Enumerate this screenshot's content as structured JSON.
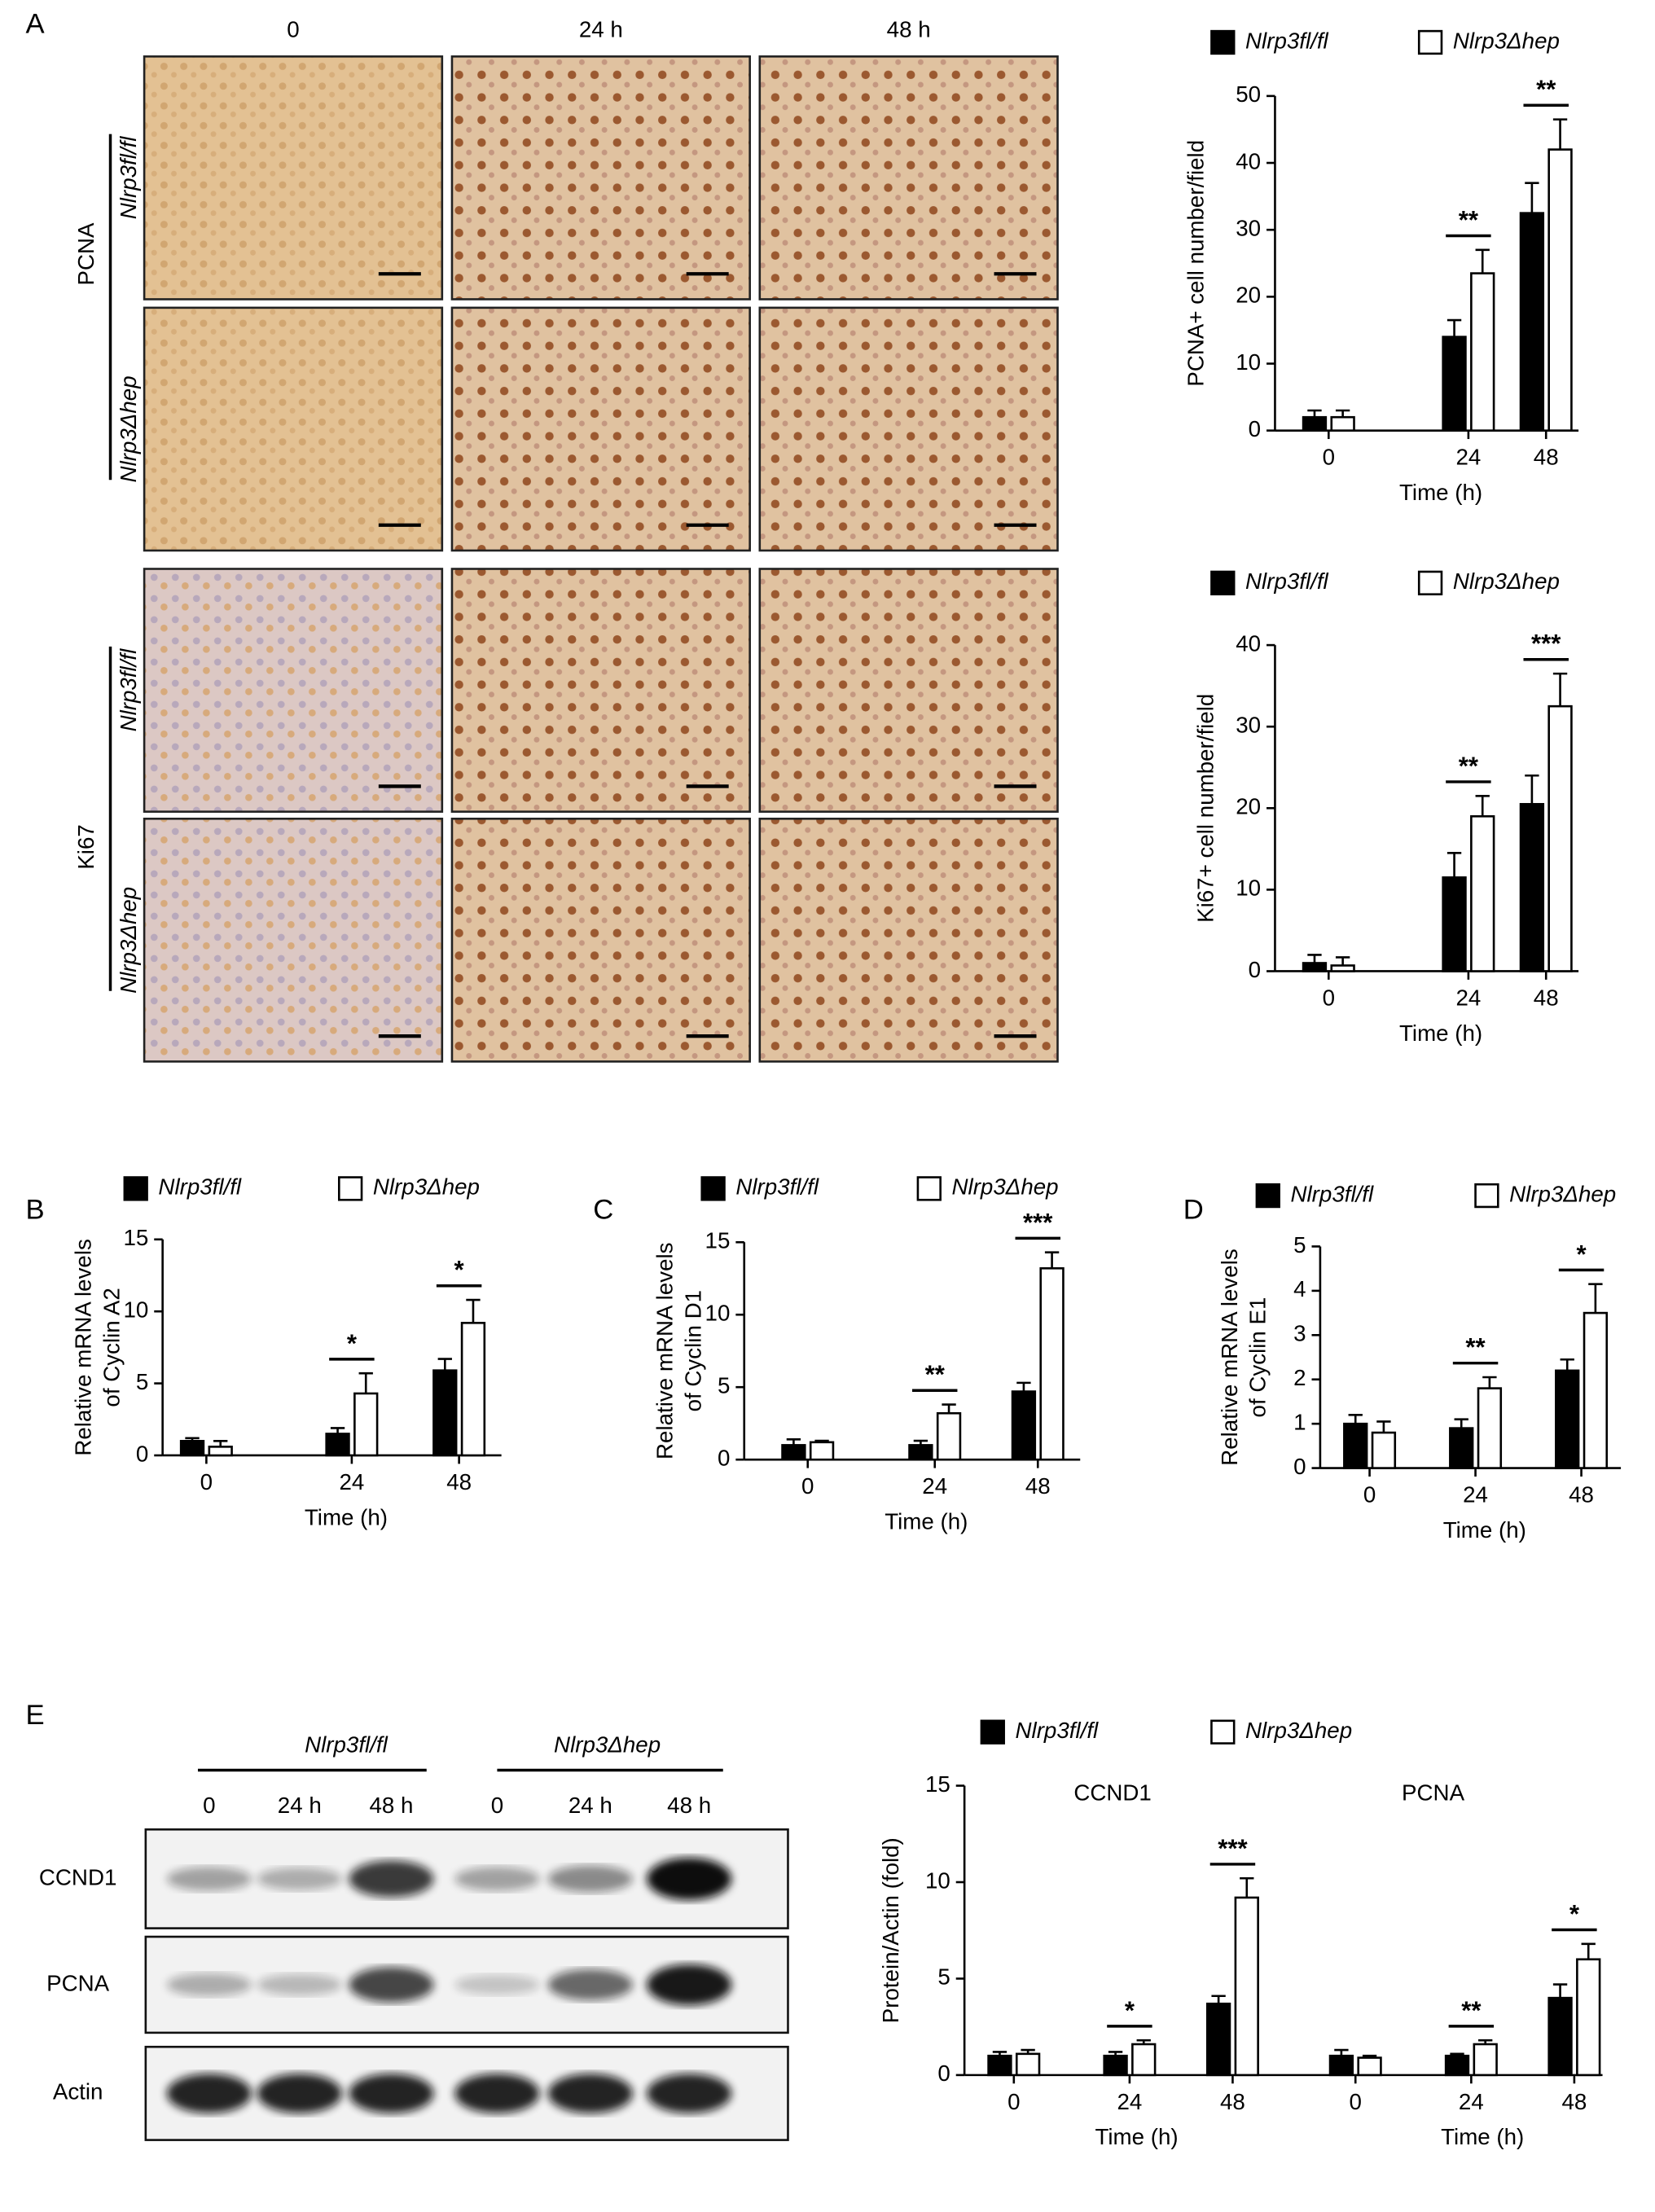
{
  "panel_labels": [
    "A",
    "B",
    "C",
    "D",
    "E"
  ],
  "micrographs": {
    "columns": [
      "0",
      "24 h",
      "48 h"
    ],
    "stains": [
      {
        "name": "PCNA",
        "rows": [
          "Nlrp3fl/fl",
          "Nlrp3Δhep"
        ]
      },
      {
        "name": "Ki67",
        "rows": [
          "Nlrp3fl/fl",
          "Nlrp3Δhep"
        ]
      }
    ]
  },
  "blot": {
    "groups": [
      {
        "name": "Nlrp3fl/fl",
        "lanes": [
          "0",
          "24 h",
          "48 h"
        ]
      },
      {
        "name": "Nlrp3Δhep",
        "lanes": [
          "0",
          "24 h",
          "48 h"
        ]
      }
    ],
    "rows": [
      "CCND1",
      "PCNA",
      "Actin"
    ]
  },
  "chart_data": [
    {
      "type": "bar",
      "ylabel": [
        "PCNA+ cell number/field"
      ],
      "xlabel": "Time (h)",
      "categories": [
        "0",
        "24",
        "48"
      ],
      "ylim": [
        0,
        50
      ],
      "yticks": [
        0,
        10,
        20,
        30,
        40,
        50
      ],
      "series": [
        {
          "name": "Nlrp3fl/fl",
          "color": "#000000",
          "values": [
            2,
            14,
            32.5
          ],
          "errors": [
            1,
            2.5,
            4.5
          ]
        },
        {
          "name": "Nlrp3Δhep",
          "color": "#ffffff",
          "values": [
            2,
            23.5,
            42
          ],
          "errors": [
            1,
            3.5,
            4.5
          ]
        }
      ],
      "significance": [
        null,
        "**",
        "**"
      ]
    },
    {
      "type": "bar",
      "ylabel": [
        "Ki67+ cell number/field"
      ],
      "xlabel": "Time (h)",
      "categories": [
        "0",
        "24",
        "48"
      ],
      "ylim": [
        0,
        40
      ],
      "yticks": [
        0,
        10,
        20,
        30,
        40
      ],
      "series": [
        {
          "name": "Nlrp3fl/fl",
          "color": "#000000",
          "values": [
            1,
            11.5,
            20.5
          ],
          "errors": [
            1,
            3,
            3.5
          ]
        },
        {
          "name": "Nlrp3Δhep",
          "color": "#ffffff",
          "values": [
            0.7,
            19,
            32.5
          ],
          "errors": [
            1,
            2.5,
            4
          ]
        }
      ],
      "significance": [
        null,
        "**",
        "***"
      ]
    },
    {
      "type": "bar",
      "ylabel": [
        "Relative mRNA levels",
        "of Cyclin A2"
      ],
      "xlabel": "Time (h)",
      "categories": [
        "0",
        "24",
        "48"
      ],
      "ylim": [
        0,
        15
      ],
      "yticks": [
        0,
        5,
        10,
        15
      ],
      "series": [
        {
          "name": "Nlrp3fl/fl",
          "color": "#000000",
          "values": [
            1,
            1.5,
            5.9
          ],
          "errors": [
            0.2,
            0.4,
            0.8
          ]
        },
        {
          "name": "Nlrp3Δhep",
          "color": "#ffffff",
          "values": [
            0.6,
            4.3,
            9.2
          ],
          "errors": [
            0.4,
            1.4,
            1.6
          ]
        }
      ],
      "significance": [
        null,
        "*",
        "*"
      ]
    },
    {
      "type": "bar",
      "ylabel": [
        "Relative mRNA levels",
        "of Cyclin D1"
      ],
      "xlabel": "Time (h)",
      "categories": [
        "0",
        "24",
        "48"
      ],
      "ylim": [
        0,
        15
      ],
      "yticks": [
        0,
        5,
        10,
        15
      ],
      "series": [
        {
          "name": "Nlrp3fl/fl",
          "color": "#000000",
          "values": [
            1,
            1,
            4.7
          ],
          "errors": [
            0.4,
            0.3,
            0.6
          ]
        },
        {
          "name": "Nlrp3Δhep",
          "color": "#ffffff",
          "values": [
            1.2,
            3.2,
            13.2
          ],
          "errors": [
            0.1,
            0.6,
            1.1
          ]
        }
      ],
      "significance": [
        null,
        "**",
        "***"
      ]
    },
    {
      "type": "bar",
      "ylabel": [
        "Relative mRNA levels",
        "of Cyclin E1"
      ],
      "xlabel": "Time (h)",
      "categories": [
        "0",
        "24",
        "48"
      ],
      "ylim": [
        0,
        5
      ],
      "yticks": [
        0,
        1,
        2,
        3,
        4,
        5
      ],
      "series": [
        {
          "name": "Nlrp3fl/fl",
          "color": "#000000",
          "values": [
            1,
            0.9,
            2.2
          ],
          "errors": [
            0.2,
            0.2,
            0.25
          ]
        },
        {
          "name": "Nlrp3Δhep",
          "color": "#ffffff",
          "values": [
            0.8,
            1.8,
            3.5
          ],
          "errors": [
            0.25,
            0.25,
            0.65
          ]
        }
      ],
      "significance": [
        null,
        "**",
        "*"
      ]
    },
    {
      "type": "bar",
      "ylabel": [
        "Protein/Actin (fold)"
      ],
      "xlabel": "Time (h)",
      "groups": [
        "CCND1",
        "PCNA"
      ],
      "categories": [
        "0",
        "24",
        "48",
        "0",
        "24",
        "48"
      ],
      "ylim": [
        0,
        15
      ],
      "yticks": [
        0,
        5,
        10,
        15
      ],
      "series": [
        {
          "name": "Nlrp3fl/fl",
          "color": "#000000",
          "values": [
            1,
            1,
            3.7,
            1,
            1,
            4
          ],
          "errors": [
            0.2,
            0.2,
            0.4,
            0.3,
            0.1,
            0.7
          ]
        },
        {
          "name": "Nlrp3Δhep",
          "color": "#ffffff",
          "values": [
            1.1,
            1.6,
            9.2,
            0.9,
            1.6,
            6
          ],
          "errors": [
            0.2,
            0.2,
            1,
            0.1,
            0.2,
            0.8
          ]
        }
      ],
      "significance": [
        null,
        "*",
        "***",
        null,
        "**",
        "*"
      ]
    }
  ]
}
